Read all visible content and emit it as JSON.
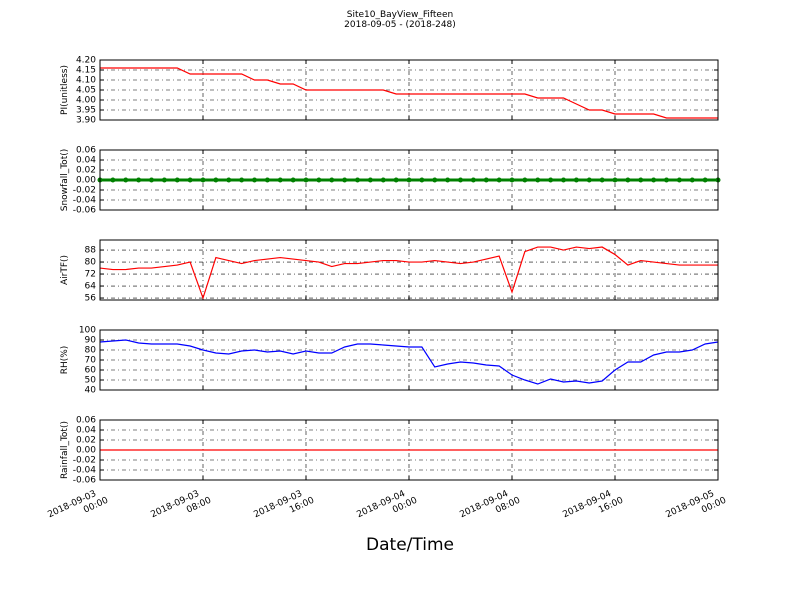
{
  "title": "Site10_BayView_Fifteen",
  "subtitle": "2018-09-05 - (2018-248)",
  "xlabel": "Date/Time",
  "x": [
    "2018-09-03 00:00",
    "2018-09-03 01:00",
    "2018-09-03 02:00",
    "2018-09-03 03:00",
    "2018-09-03 04:00",
    "2018-09-03 05:00",
    "2018-09-03 06:00",
    "2018-09-03 07:00",
    "2018-09-03 08:00",
    "2018-09-03 09:00",
    "2018-09-03 10:00",
    "2018-09-03 11:00",
    "2018-09-03 12:00",
    "2018-09-03 13:00",
    "2018-09-03 14:00",
    "2018-09-03 15:00",
    "2018-09-03 16:00",
    "2018-09-03 17:00",
    "2018-09-03 18:00",
    "2018-09-03 19:00",
    "2018-09-03 20:00",
    "2018-09-03 21:00",
    "2018-09-03 22:00",
    "2018-09-03 23:00",
    "2018-09-04 00:00",
    "2018-09-04 01:00",
    "2018-09-04 02:00",
    "2018-09-04 03:00",
    "2018-09-04 04:00",
    "2018-09-04 05:00",
    "2018-09-04 06:00",
    "2018-09-04 07:00",
    "2018-09-04 08:00",
    "2018-09-04 09:00",
    "2018-09-04 10:00",
    "2018-09-04 11:00",
    "2018-09-04 12:00",
    "2018-09-04 13:00",
    "2018-09-04 14:00",
    "2018-09-04 15:00",
    "2018-09-04 16:00",
    "2018-09-04 17:00",
    "2018-09-04 18:00",
    "2018-09-04 19:00",
    "2018-09-04 20:00",
    "2018-09-04 21:00",
    "2018-09-04 22:00",
    "2018-09-04 23:00",
    "2018-09-05 00:00"
  ],
  "xlim": [
    "2018-09-03 00:00",
    "2018-09-05 00:00"
  ],
  "xticks": [
    "2018-09-03 00:00",
    "2018-09-03 08:00",
    "2018-09-03 16:00",
    "2018-09-04 00:00",
    "2018-09-04 08:00",
    "2018-09-04 16:00",
    "2018-09-05 00:00"
  ],
  "chart_data": [
    {
      "type": "line",
      "ylabel": "PI(unitless)",
      "color": "#ff0000",
      "grid": true,
      "ylim": [
        3.9,
        4.2
      ],
      "yticks": [
        {
          "value": 3.9,
          "label": "3.90"
        },
        3.95,
        {
          "value": 4.0,
          "label": "4.00"
        },
        4.05,
        {
          "value": 4.1,
          "label": "4.10"
        },
        4.15,
        {
          "value": 4.2,
          "label": "4.20"
        }
      ],
      "values": [
        4.16,
        4.16,
        4.16,
        4.16,
        4.16,
        4.16,
        4.16,
        4.13,
        4.13,
        4.13,
        4.13,
        4.13,
        4.1,
        4.1,
        4.08,
        4.08,
        4.05,
        4.05,
        4.05,
        4.05,
        4.05,
        4.05,
        4.05,
        4.03,
        4.03,
        4.03,
        4.03,
        4.03,
        4.03,
        4.03,
        4.03,
        4.03,
        4.03,
        4.03,
        4.01,
        4.01,
        4.01,
        3.98,
        3.95,
        3.95,
        3.93,
        3.93,
        3.93,
        3.93,
        3.91,
        3.91,
        3.91,
        3.91,
        3.91
      ]
    },
    {
      "type": "line",
      "ylabel": "Snowfall_Tot()",
      "color": "#008000",
      "grid": true,
      "markers": true,
      "ylim": [
        -0.06,
        0.06
      ],
      "yticks": [
        -0.06,
        -0.04,
        -0.02,
        {
          "value": 0,
          "label": "0.00"
        },
        0.02,
        0.04,
        0.06
      ],
      "values": [
        0,
        0,
        0,
        0,
        0,
        0,
        0,
        0,
        0,
        0,
        0,
        0,
        0,
        0,
        0,
        0,
        0,
        0,
        0,
        0,
        0,
        0,
        0,
        0,
        0,
        0,
        0,
        0,
        0,
        0,
        0,
        0,
        0,
        0,
        0,
        0,
        0,
        0,
        0,
        0,
        0,
        0,
        0,
        0,
        0,
        0,
        0,
        0,
        0
      ]
    },
    {
      "type": "line",
      "ylabel": "AirTF()",
      "color": "#ff0000",
      "grid": true,
      "ylim": [
        54.7,
        94.7
      ],
      "yticks": [
        56,
        64,
        72,
        80,
        88
      ],
      "values": [
        76,
        75,
        75,
        76,
        76,
        77,
        78,
        80,
        56,
        83,
        81,
        79,
        81,
        82,
        83,
        82,
        81,
        80,
        77,
        79,
        79,
        80,
        81,
        81,
        80,
        80,
        81,
        80,
        79,
        80,
        82,
        84,
        60,
        87,
        90,
        90,
        88,
        90,
        89,
        90,
        85,
        78,
        81,
        80,
        79,
        78,
        78,
        78,
        78
      ]
    },
    {
      "type": "line",
      "ylabel": "RH(%)",
      "color": "#0000ff",
      "grid": true,
      "ylim": [
        40,
        100
      ],
      "yticks": [
        40,
        50,
        60,
        70,
        80,
        90,
        100
      ],
      "values": [
        88,
        89,
        90,
        87,
        86,
        86,
        86,
        84,
        80,
        77,
        76,
        79,
        80,
        78,
        79,
        76,
        79,
        77,
        77,
        83,
        86,
        86,
        85,
        84,
        83,
        83,
        63,
        66,
        68,
        67,
        65,
        64,
        55,
        50,
        46,
        51,
        48,
        49,
        47,
        49,
        60,
        68,
        68,
        75,
        78,
        78,
        80,
        86,
        88
      ]
    },
    {
      "type": "line",
      "ylabel": "Rainfall_Tot()",
      "color": "#ff0000",
      "grid": true,
      "ylim": [
        -0.06,
        0.06
      ],
      "yticks": [
        -0.06,
        -0.04,
        -0.02,
        {
          "value": 0,
          "label": "0.00"
        },
        0.02,
        0.04,
        0.06
      ],
      "values": [
        0,
        0,
        0,
        0,
        0,
        0,
        0,
        0,
        0,
        0,
        0,
        0,
        0,
        0,
        0,
        0,
        0,
        0,
        0,
        0,
        0,
        0,
        0,
        0,
        0,
        0,
        0,
        0,
        0,
        0,
        0,
        0,
        0,
        0,
        0,
        0,
        0,
        0,
        0,
        0,
        0,
        0,
        0,
        0,
        0,
        0,
        0,
        0,
        0
      ]
    }
  ]
}
